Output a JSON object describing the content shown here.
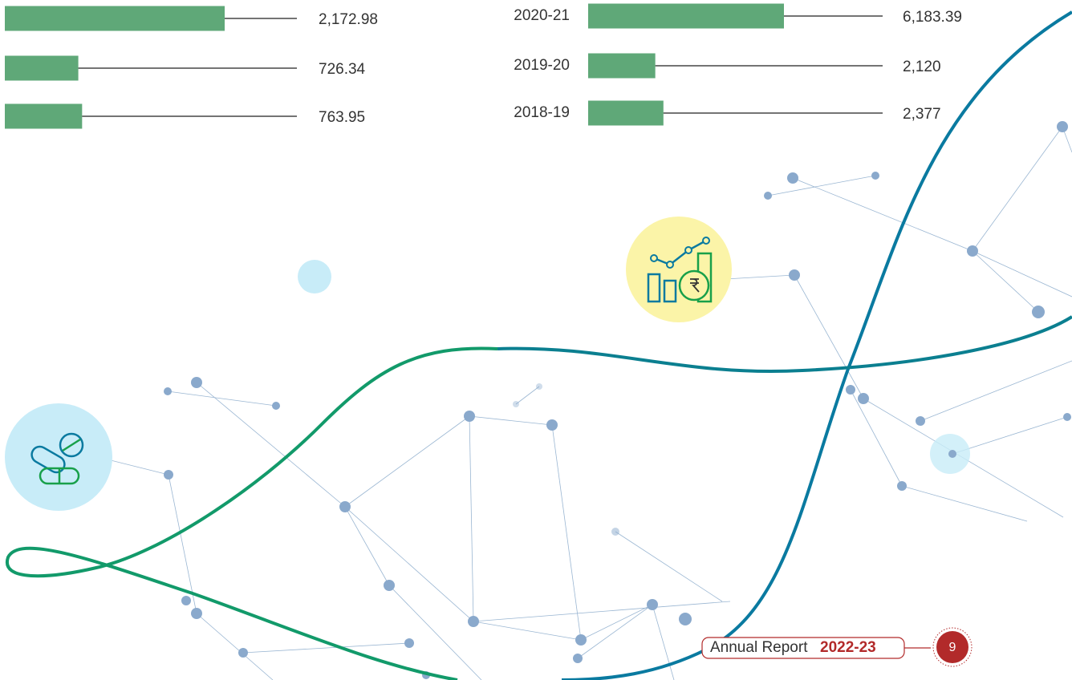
{
  "chart_data": [
    {
      "type": "bar",
      "orientation": "horizontal",
      "color": "#5fa878",
      "categories": [
        null,
        null,
        null
      ],
      "values": [
        2172.98,
        726.34,
        763.95
      ],
      "value_labels": [
        "2,172.98",
        "726.34",
        "763.95"
      ]
    },
    {
      "type": "bar",
      "orientation": "horizontal",
      "color": "#5fa878",
      "categories": [
        "2020-21",
        "2019-20",
        "2018-19"
      ],
      "values": [
        6183.39,
        2120,
        2377
      ],
      "value_labels": [
        "6,183.39",
        "2,120",
        "2,377"
      ]
    }
  ],
  "footer": {
    "label": "Annual Report",
    "year": "2022-23",
    "page": "9"
  }
}
